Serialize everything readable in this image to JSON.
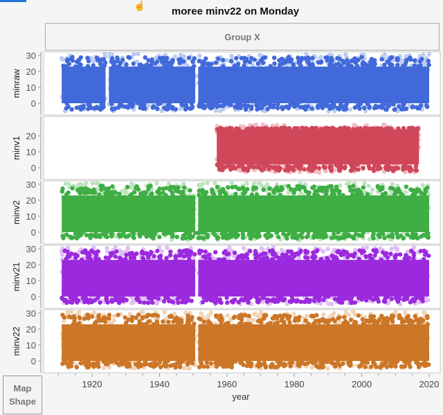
{
  "title": "moree minv22 on Monday",
  "group_x_label": "Group X",
  "map_shape_label": [
    "Map",
    "Shape"
  ],
  "chart_data": {
    "type": "scatter",
    "title": "moree minv22 on Monday",
    "xlabel": "year",
    "xlim": [
      1908,
      2023
    ],
    "xticks": [
      1920,
      1940,
      1960,
      1980,
      2000,
      2020
    ],
    "grid": false,
    "panels": [
      {
        "ylabel": "minraw",
        "color": "#4169d9",
        "light": "#bccbf2",
        "yticks": [
          0,
          10,
          20,
          30
        ],
        "ylim": [
          -6,
          32
        ],
        "segments": [
          [
            1911,
            1924
          ],
          [
            1925,
            1950.6
          ],
          [
            1951.5,
            2020
          ]
        ],
        "core": [
          0,
          23
        ],
        "extreme": [
          -5,
          31
        ]
      },
      {
        "ylabel": "minv1",
        "color": "#d0475a",
        "light": "#f0bcc4",
        "yticks": [
          0,
          10,
          20
        ],
        "ylim": [
          -6,
          32
        ],
        "segments": [
          [
            1957,
            2017
          ]
        ],
        "core": [
          2,
          24
        ],
        "extreme": [
          -3,
          27
        ]
      },
      {
        "ylabel": "minv2",
        "color": "#3fae44",
        "light": "#bde4bf",
        "yticks": [
          0,
          10,
          20,
          30
        ],
        "ylim": [
          -6,
          32
        ],
        "segments": [
          [
            1911,
            1950.6
          ],
          [
            1951.5,
            2020
          ]
        ],
        "core": [
          0,
          23
        ],
        "extreme": [
          -5,
          31
        ]
      },
      {
        "ylabel": "minv21",
        "color": "#9b2ade",
        "light": "#dfbff5",
        "yticks": [
          0,
          10,
          20,
          30
        ],
        "ylim": [
          -6,
          32
        ],
        "segments": [
          [
            1911,
            1950.6
          ],
          [
            1951.5,
            2020
          ]
        ],
        "core": [
          0,
          23
        ],
        "extreme": [
          -5,
          31
        ]
      },
      {
        "ylabel": "minv22",
        "color": "#cc7628",
        "light": "#f1d3b6",
        "yticks": [
          0,
          10,
          20,
          30
        ],
        "ylim": [
          -6,
          32
        ],
        "segments": [
          [
            1911,
            1950.6
          ],
          [
            1951.5,
            2020
          ]
        ],
        "core": [
          0,
          23
        ],
        "extreme": [
          -5,
          31
        ]
      }
    ]
  }
}
